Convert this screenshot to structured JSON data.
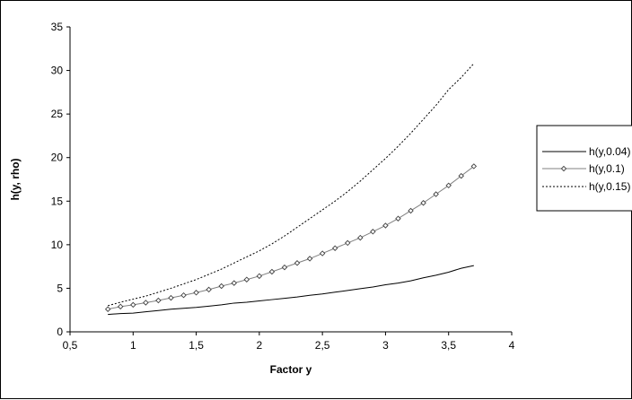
{
  "chart_data": {
    "type": "line",
    "title": "",
    "xlabel": "Factor y",
    "ylabel": "h(y, rho)",
    "xlim": [
      0.5,
      4
    ],
    "ylim": [
      0,
      35
    ],
    "x_ticks": [
      "0,5",
      "1",
      "1,5",
      "2",
      "2,5",
      "3",
      "3,5",
      "4"
    ],
    "y_ticks": [
      "0",
      "5",
      "10",
      "15",
      "20",
      "25",
      "30",
      "35"
    ],
    "grid": false,
    "legend_position": "right",
    "x": [
      0.8,
      0.9,
      1.0,
      1.1,
      1.2,
      1.3,
      1.4,
      1.5,
      1.6,
      1.7,
      1.8,
      1.9,
      2.0,
      2.1,
      2.2,
      2.3,
      2.4,
      2.5,
      2.6,
      2.7,
      2.8,
      2.9,
      3.0,
      3.1,
      3.2,
      3.3,
      3.4,
      3.5,
      3.6,
      3.7
    ],
    "series": [
      {
        "name": "h(y,0.04)",
        "style": "solid",
        "color": "#000000",
        "values": [
          2.0,
          2.1,
          2.15,
          2.3,
          2.45,
          2.6,
          2.7,
          2.8,
          2.95,
          3.1,
          3.3,
          3.4,
          3.55,
          3.7,
          3.85,
          4.0,
          4.2,
          4.35,
          4.55,
          4.75,
          4.95,
          5.15,
          5.4,
          5.6,
          5.85,
          6.2,
          6.5,
          6.85,
          7.3,
          7.6
        ]
      },
      {
        "name": "h(y,0.1)",
        "style": "solid-diamond",
        "color": "#808080",
        "values": [
          2.6,
          2.9,
          3.1,
          3.35,
          3.6,
          3.9,
          4.2,
          4.5,
          4.85,
          5.25,
          5.6,
          6.0,
          6.4,
          6.9,
          7.4,
          7.9,
          8.4,
          9.0,
          9.6,
          10.2,
          10.8,
          11.5,
          12.2,
          13.0,
          13.9,
          14.8,
          15.8,
          16.8,
          17.9,
          19.0
        ]
      },
      {
        "name": "h(y,0.15)",
        "style": "dotted",
        "color": "#000000",
        "values": [
          3.0,
          3.4,
          3.75,
          4.1,
          4.55,
          5.0,
          5.5,
          6.0,
          6.6,
          7.2,
          7.9,
          8.6,
          9.3,
          10.1,
          11.0,
          12.0,
          13.0,
          14.0,
          15.0,
          16.1,
          17.3,
          18.6,
          19.9,
          21.3,
          22.8,
          24.4,
          26.0,
          27.8,
          29.2,
          30.8
        ]
      }
    ]
  }
}
